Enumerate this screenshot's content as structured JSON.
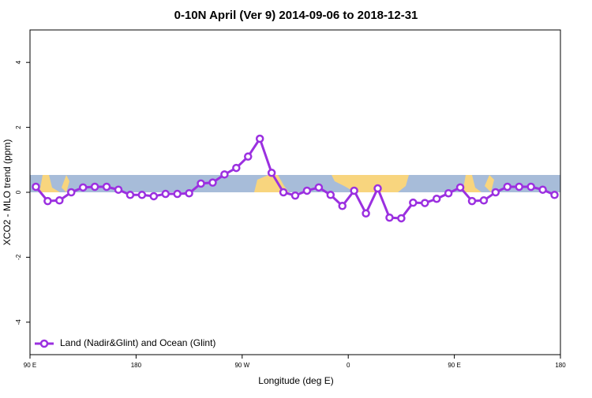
{
  "chart_data": {
    "type": "line",
    "title": "0-10N April (Ver 9)   2014-09-06 to 2018-12-31",
    "x_label": "Longitude (deg E)",
    "y_label": "XCO2 - MLO trend (ppm)",
    "x": [
      95,
      105,
      115,
      125,
      135,
      145,
      155,
      165,
      175,
      185,
      195,
      205,
      215,
      225,
      235,
      245,
      255,
      265,
      275,
      285,
      295,
      305,
      315,
      325,
      335,
      345,
      355,
      365,
      375,
      385,
      395,
      405,
      415,
      425,
      435,
      445,
      455,
      465,
      475,
      485,
      495,
      505,
      515,
      525,
      535
    ],
    "series": [
      {
        "name": "Land (Nadir&Glint) and Ocean (Glint)",
        "color": "#9b30e0",
        "values": [
          0.17,
          -0.27,
          -0.25,
          0.0,
          0.15,
          0.17,
          0.17,
          0.08,
          -0.08,
          -0.08,
          -0.12,
          -0.05,
          -0.05,
          -0.03,
          0.27,
          0.3,
          0.55,
          0.75,
          1.1,
          1.65,
          0.6,
          0.0,
          -0.1,
          0.05,
          0.15,
          -0.08,
          -0.42,
          0.05,
          -0.65,
          0.12,
          -0.78,
          -0.8,
          -0.32,
          -0.33,
          -0.2,
          -0.03,
          0.15,
          -0.27,
          -0.25,
          0.0,
          0.17,
          0.17,
          0.17,
          0.08,
          -0.08
        ]
      }
    ],
    "xlim": [
      90,
      540
    ],
    "xticks": [
      {
        "value": 90,
        "label": "90 E"
      },
      {
        "value": 180,
        "label": "180"
      },
      {
        "value": 270,
        "label": "90 W"
      },
      {
        "value": 360,
        "label": "0"
      },
      {
        "value": 450,
        "label": "90 E"
      },
      {
        "value": 540,
        "label": "180"
      }
    ],
    "ylim": [
      -5,
      5
    ],
    "yticks": [
      -4,
      -2,
      0,
      2,
      4
    ],
    "legend": "bottom-left"
  }
}
